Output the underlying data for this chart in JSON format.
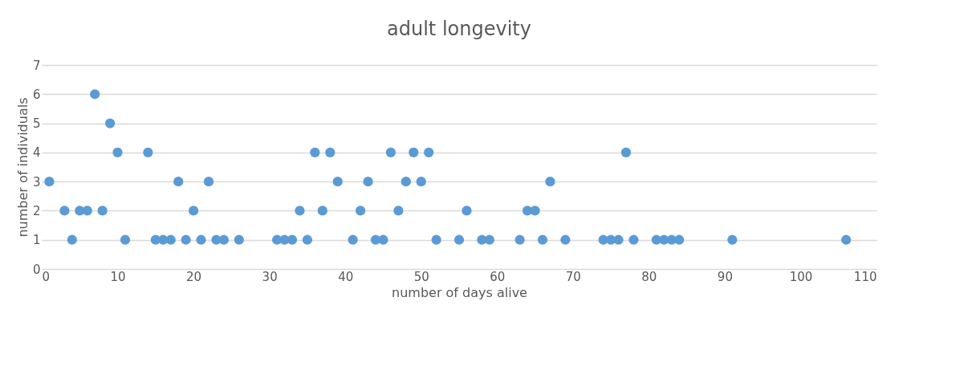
{
  "chart_data": {
    "type": "scatter",
    "title": "adult longevity",
    "xlabel": "number of days alive",
    "ylabel": "number of individuals",
    "x": [
      1,
      3,
      4,
      5,
      6,
      7,
      8,
      9,
      10,
      11,
      14,
      15,
      16,
      17,
      18,
      19,
      20,
      21,
      22,
      23,
      24,
      26,
      31,
      32,
      33,
      34,
      35,
      36,
      37,
      38,
      39,
      41,
      42,
      43,
      44,
      45,
      46,
      47,
      48,
      49,
      50,
      51,
      52,
      55,
      56,
      58,
      59,
      63,
      64,
      65,
      66,
      67,
      69,
      74,
      75,
      76,
      77,
      78,
      81,
      82,
      83,
      84,
      91,
      106
    ],
    "series": [
      {
        "color": "#5b9bd5",
        "values": [
          3,
          2,
          1,
          2,
          2,
          6,
          2,
          5,
          4,
          1,
          4,
          1,
          1,
          1,
          3,
          1,
          2,
          1,
          3,
          1,
          1,
          1,
          1,
          1,
          1,
          2,
          1,
          4,
          2,
          4,
          3,
          1,
          2,
          3,
          1,
          1,
          4,
          2,
          3,
          4,
          3,
          4,
          1,
          1,
          2,
          1,
          1,
          1,
          2,
          2,
          1,
          3,
          1,
          1,
          1,
          1,
          4,
          1,
          1,
          1,
          1,
          1,
          1,
          1
        ]
      }
    ],
    "xlim": [
      0,
      110
    ],
    "xticks": [
      0,
      10,
      20,
      30,
      40,
      50,
      60,
      70,
      80,
      90,
      100,
      110
    ],
    "ylim": [
      0,
      7
    ],
    "yticks": [
      0,
      1,
      2,
      3,
      4,
      5,
      6,
      7
    ],
    "grid": "y",
    "marker": "circle"
  }
}
